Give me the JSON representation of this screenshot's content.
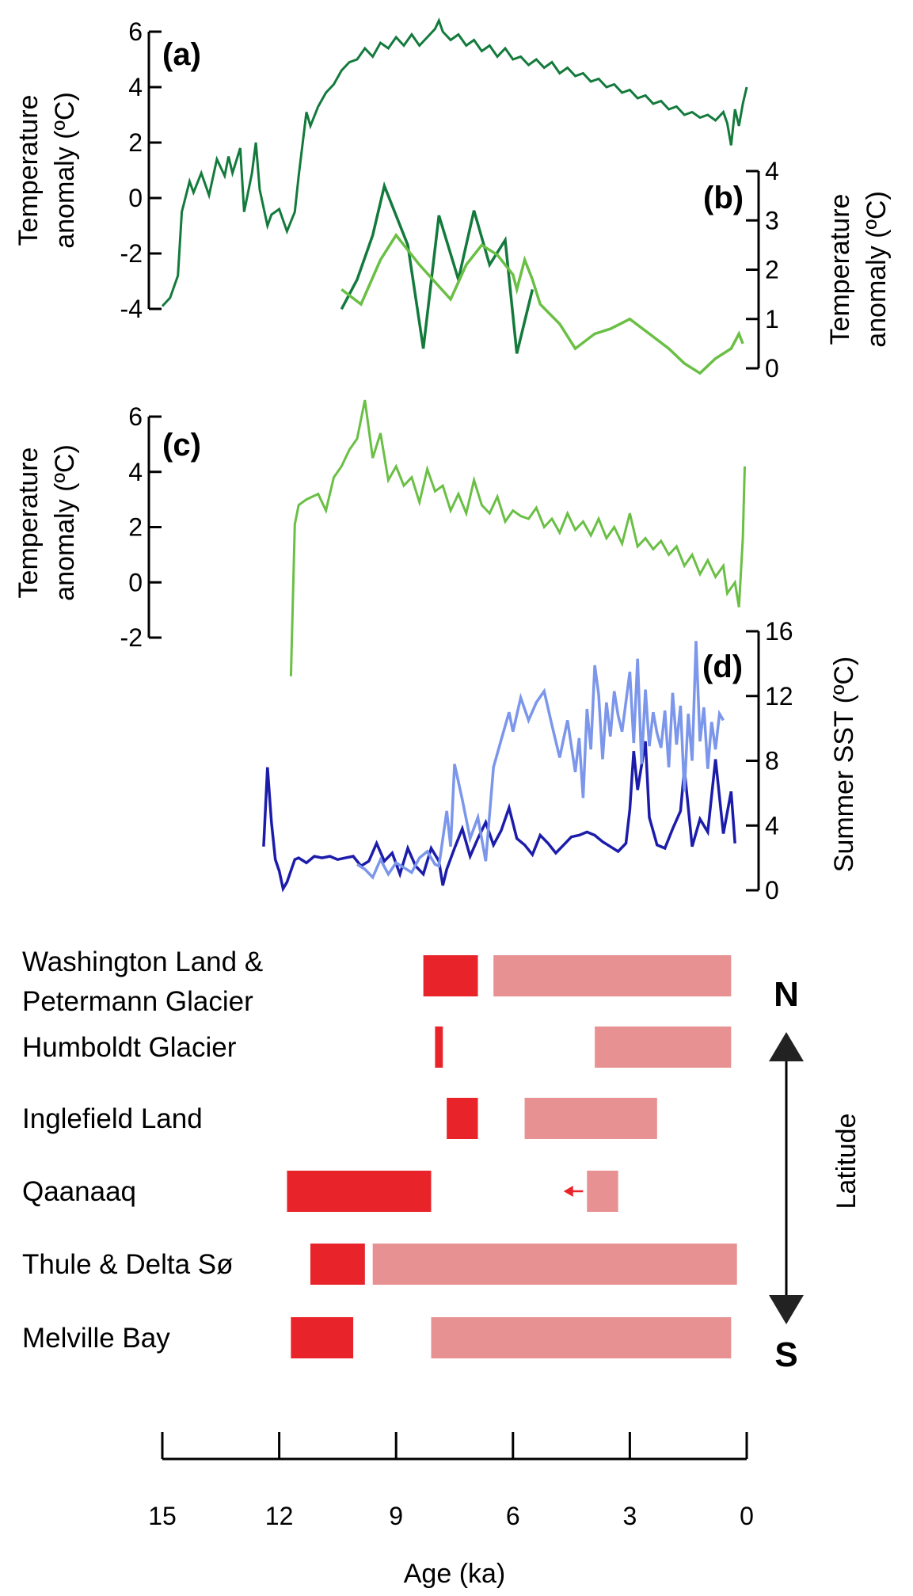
{
  "chart_data": [
    {
      "panel": "a",
      "type": "line",
      "label": "(a)",
      "ylabel": "Temperature anomaly (ºC)",
      "ylim": [
        -4,
        6
      ],
      "yticks": [
        6,
        4,
        2,
        0,
        -2,
        -4
      ],
      "xlim": [
        15,
        0
      ],
      "color": "#137a3c",
      "series": [
        {
          "x": [
            15.0,
            14.8,
            14.6,
            14.5,
            14.3,
            14.2,
            14.0,
            13.8,
            13.6,
            13.4,
            13.3,
            13.2,
            13.0,
            12.9,
            12.7,
            12.6,
            12.5,
            12.3,
            12.2,
            12.0,
            11.8,
            11.6,
            11.5,
            11.3,
            11.2,
            11.0,
            10.8,
            10.6,
            10.4,
            10.2,
            10.0,
            9.8,
            9.6,
            9.4,
            9.2,
            9.0,
            8.8,
            8.6,
            8.4,
            8.2,
            8.0,
            7.9,
            7.8,
            7.6,
            7.4,
            7.2,
            7.0,
            6.8,
            6.6,
            6.4,
            6.2,
            6.0,
            5.8,
            5.6,
            5.4,
            5.2,
            5.0,
            4.8,
            4.6,
            4.4,
            4.2,
            4.0,
            3.8,
            3.6,
            3.4,
            3.2,
            3.0,
            2.8,
            2.6,
            2.4,
            2.2,
            2.0,
            1.8,
            1.6,
            1.4,
            1.2,
            1.0,
            0.8,
            0.6,
            0.5,
            0.4,
            0.3,
            0.2,
            0.1,
            0.0
          ],
          "y": [
            -3.9,
            -3.6,
            -2.8,
            -0.5,
            0.6,
            0.2,
            0.9,
            0.1,
            1.4,
            0.8,
            1.5,
            0.9,
            1.8,
            -0.5,
            0.9,
            2.0,
            0.3,
            -1.0,
            -0.6,
            -0.4,
            -1.2,
            -0.5,
            0.8,
            3.1,
            2.6,
            3.3,
            3.8,
            4.1,
            4.6,
            4.9,
            5.0,
            5.4,
            5.1,
            5.6,
            5.4,
            5.8,
            5.5,
            5.9,
            5.5,
            5.8,
            6.1,
            6.4,
            6.0,
            5.7,
            5.9,
            5.5,
            5.7,
            5.3,
            5.5,
            5.1,
            5.4,
            5.0,
            5.1,
            4.8,
            5.0,
            4.7,
            4.9,
            4.5,
            4.7,
            4.4,
            4.5,
            4.2,
            4.3,
            4.0,
            4.1,
            3.8,
            3.9,
            3.6,
            3.7,
            3.4,
            3.5,
            3.2,
            3.3,
            3.0,
            3.1,
            2.9,
            3.0,
            2.8,
            3.1,
            2.7,
            1.9,
            3.2,
            2.6,
            3.4,
            4.0
          ]
        }
      ]
    },
    {
      "panel": "b",
      "type": "line",
      "label": "(b)",
      "ylabel": "Temperature anomaly (ºC)",
      "ylim": [
        0,
        4
      ],
      "yticks": [
        4,
        3,
        2,
        1,
        0
      ],
      "xlim": [
        15,
        0
      ],
      "series": [
        {
          "color": "#137a3c",
          "x": [
            10.4,
            10.0,
            9.6,
            9.3,
            8.7,
            8.3,
            7.9,
            7.4,
            7.0,
            6.6,
            6.2,
            5.9,
            5.5
          ],
          "y": [
            1.2,
            1.8,
            2.7,
            3.7,
            2.5,
            0.4,
            3.1,
            1.8,
            3.2,
            2.1,
            2.6,
            0.3,
            1.6
          ]
        },
        {
          "color": "#6abf45",
          "x": [
            10.4,
            9.9,
            9.4,
            9.0,
            8.4,
            7.6,
            7.2,
            6.8,
            6.4,
            6.0,
            5.9,
            5.7,
            5.5,
            5.3,
            4.8,
            4.4,
            3.9,
            3.5,
            3.0,
            2.5,
            2.0,
            1.6,
            1.2,
            0.8,
            0.4,
            0.2,
            0.1
          ],
          "y": [
            1.6,
            1.3,
            2.2,
            2.7,
            2.1,
            1.4,
            2.1,
            2.5,
            2.3,
            1.9,
            1.6,
            2.2,
            1.8,
            1.3,
            0.9,
            0.4,
            0.7,
            0.8,
            1.0,
            0.7,
            0.4,
            0.1,
            -0.1,
            0.2,
            0.4,
            0.7,
            0.5
          ]
        }
      ]
    },
    {
      "panel": "c",
      "type": "line",
      "label": "(c)",
      "ylabel": "Temperature anomaly (ºC)",
      "ylim": [
        -2,
        6
      ],
      "yticks": [
        6,
        4,
        2,
        0,
        -2
      ],
      "xlim": [
        15,
        0
      ],
      "color": "#6abf45",
      "series": [
        {
          "x": [
            11.7,
            11.6,
            11.5,
            11.3,
            11.0,
            10.8,
            10.6,
            10.4,
            10.2,
            10.0,
            9.8,
            9.6,
            9.4,
            9.2,
            9.0,
            8.8,
            8.6,
            8.4,
            8.2,
            8.0,
            7.8,
            7.6,
            7.4,
            7.2,
            7.0,
            6.8,
            6.6,
            6.4,
            6.2,
            6.0,
            5.8,
            5.6,
            5.4,
            5.2,
            5.0,
            4.8,
            4.6,
            4.4,
            4.2,
            4.0,
            3.8,
            3.6,
            3.4,
            3.2,
            3.0,
            2.8,
            2.6,
            2.4,
            2.2,
            2.0,
            1.8,
            1.6,
            1.4,
            1.2,
            1.0,
            0.8,
            0.6,
            0.5,
            0.4,
            0.3,
            0.2,
            0.1,
            0.05
          ],
          "y": [
            -3.4,
            2.1,
            2.8,
            3.0,
            3.2,
            2.6,
            3.8,
            4.2,
            4.8,
            5.2,
            6.6,
            4.5,
            5.4,
            3.7,
            4.2,
            3.5,
            3.8,
            2.9,
            4.1,
            3.3,
            3.5,
            2.6,
            3.2,
            2.5,
            3.7,
            2.8,
            2.5,
            3.1,
            2.2,
            2.6,
            2.4,
            2.3,
            2.7,
            2.0,
            2.3,
            1.8,
            2.5,
            1.9,
            2.2,
            1.7,
            2.3,
            1.6,
            2.0,
            1.4,
            2.5,
            1.3,
            1.6,
            1.2,
            1.5,
            1.0,
            1.3,
            0.6,
            1.0,
            0.3,
            0.8,
            0.2,
            0.6,
            -0.4,
            -0.2,
            0.0,
            -0.9,
            1.6,
            4.2
          ]
        }
      ]
    },
    {
      "panel": "d",
      "type": "line",
      "label": "(d)",
      "ylabel": "Summer SST (ºC)",
      "ylim": [
        0,
        16
      ],
      "yticks": [
        16,
        12,
        8,
        4,
        0
      ],
      "xlim": [
        15,
        0
      ],
      "series": [
        {
          "color": "#1c1cab",
          "x": [
            12.4,
            12.3,
            12.2,
            12.1,
            12.0,
            11.9,
            11.8,
            11.6,
            11.5,
            11.3,
            11.1,
            10.9,
            10.7,
            10.5,
            10.3,
            10.1,
            9.9,
            9.7,
            9.5,
            9.3,
            9.1,
            8.9,
            8.7,
            8.5,
            8.3,
            8.1,
            7.9,
            7.8,
            7.7,
            7.5,
            7.3,
            7.1,
            6.9,
            6.7,
            6.5,
            6.3,
            6.1,
            5.9,
            5.7,
            5.5,
            5.3,
            5.1,
            4.9,
            4.7,
            4.5,
            4.3,
            4.1,
            3.9,
            3.7,
            3.5,
            3.3,
            3.1,
            3.0,
            2.9,
            2.8,
            2.6,
            2.5,
            2.3,
            2.1,
            1.9,
            1.7,
            1.6,
            1.4,
            1.2,
            1.0,
            0.8,
            0.6,
            0.4,
            0.3
          ],
          "y": [
            2.7,
            7.6,
            4.2,
            1.9,
            1.2,
            0.1,
            0.5,
            1.9,
            2.0,
            1.7,
            2.1,
            2.0,
            2.1,
            1.9,
            2.0,
            2.1,
            1.5,
            1.8,
            2.9,
            1.8,
            2.3,
            1.0,
            2.6,
            1.5,
            1.0,
            2.6,
            1.8,
            0.3,
            1.3,
            2.6,
            3.8,
            2.1,
            3.2,
            4.2,
            2.8,
            3.7,
            5.1,
            3.2,
            2.8,
            2.2,
            3.4,
            2.9,
            2.3,
            2.8,
            3.3,
            3.4,
            3.6,
            3.4,
            3.0,
            2.7,
            2.4,
            2.9,
            5.0,
            8.6,
            6.2,
            9.2,
            4.5,
            2.8,
            2.6,
            3.8,
            4.9,
            7.5,
            2.7,
            4.4,
            3.6,
            8.1,
            3.5,
            6.1,
            2.9
          ]
        }
      ]
    },
    {
      "panel": "d",
      "type": "line",
      "ylim": [
        0,
        16
      ],
      "xlim": [
        15,
        0
      ],
      "series": [
        {
          "color": "#7b96ea",
          "x": [
            10.0,
            9.8,
            9.6,
            9.4,
            9.2,
            9.0,
            8.8,
            8.6,
            8.4,
            8.2,
            8.0,
            7.9,
            7.7,
            7.6,
            7.5,
            7.3,
            7.1,
            6.9,
            6.7,
            6.5,
            6.3,
            6.1,
            6.0,
            5.8,
            5.6,
            5.4,
            5.2,
            5.0,
            4.8,
            4.6,
            4.4,
            4.3,
            4.2,
            4.1,
            4.0,
            3.9,
            3.8,
            3.7,
            3.6,
            3.5,
            3.4,
            3.3,
            3.2,
            3.0,
            2.9,
            2.8,
            2.7,
            2.6,
            2.5,
            2.4,
            2.3,
            2.2,
            2.1,
            2.0,
            1.9,
            1.8,
            1.7,
            1.6,
            1.5,
            1.4,
            1.3,
            1.2,
            1.1,
            1.0,
            0.9,
            0.8,
            0.7,
            0.6
          ],
          "y": [
            1.6,
            1.3,
            0.8,
            1.9,
            1.0,
            1.7,
            1.4,
            1.1,
            2.0,
            2.4,
            1.6,
            1.5,
            4.9,
            2.7,
            7.8,
            5.6,
            3.2,
            4.5,
            1.8,
            7.6,
            9.3,
            11.0,
            9.8,
            11.9,
            10.5,
            11.6,
            12.3,
            10.2,
            8.2,
            10.5,
            7.3,
            9.4,
            5.7,
            11.2,
            8.7,
            13.9,
            12.1,
            8.1,
            11.6,
            9.5,
            12.3,
            10.8,
            9.8,
            13.5,
            9.1,
            14.3,
            7.8,
            12.4,
            8.9,
            11.0,
            9.7,
            8.8,
            11.1,
            7.6,
            12.2,
            9.0,
            11.4,
            6.1,
            10.9,
            8.0,
            15.4,
            9.2,
            11.3,
            7.5,
            10.4,
            8.7,
            10.9,
            10.5
          ]
        }
      ]
    },
    {
      "panel": "e",
      "type": "bar",
      "orientation": "horizontal-range",
      "xlabel": "Age (ka)",
      "xlim": [
        15,
        0
      ],
      "xticks": [
        "15",
        "12",
        "9",
        "6",
        "3",
        "0"
      ],
      "xtick_values": [
        15,
        12,
        9,
        6,
        3,
        0
      ],
      "colors": {
        "dark": "#e8232a",
        "light": "#e89192"
      },
      "direction": {
        "north": "N",
        "south": "S",
        "axis_label": "Latitude"
      },
      "categories": [
        {
          "line1": "Washington Land &",
          "line2": "Petermann Glacier",
          "dark": [
            [
              8.3,
              6.9
            ]
          ],
          "light": [
            [
              6.5,
              0.4
            ]
          ]
        },
        {
          "line1": "Humboldt Glacier",
          "line2": "",
          "dark": [
            [
              8.0,
              7.8
            ]
          ],
          "light": [
            [
              3.9,
              0.4
            ]
          ]
        },
        {
          "line1": "Inglefield Land",
          "line2": "",
          "dark": [
            [
              7.7,
              6.9
            ]
          ],
          "light": [
            [
              5.7,
              2.3
            ]
          ]
        },
        {
          "line1": "Qaanaaq",
          "line2": "",
          "dark": [
            [
              11.8,
              8.1
            ]
          ],
          "light": [
            [
              4.1,
              3.3
            ]
          ],
          "arrow": [
            4.2,
            4.7
          ]
        },
        {
          "line1": "Thule & Delta Sø",
          "line2": "",
          "dark": [
            [
              11.2,
              9.8
            ]
          ],
          "light": [
            [
              9.6,
              0.25
            ]
          ]
        },
        {
          "line1": "Melville Bay",
          "line2": "",
          "dark": [
            [
              11.7,
              10.1
            ]
          ],
          "light": [
            [
              8.1,
              0.4
            ]
          ]
        }
      ]
    }
  ]
}
